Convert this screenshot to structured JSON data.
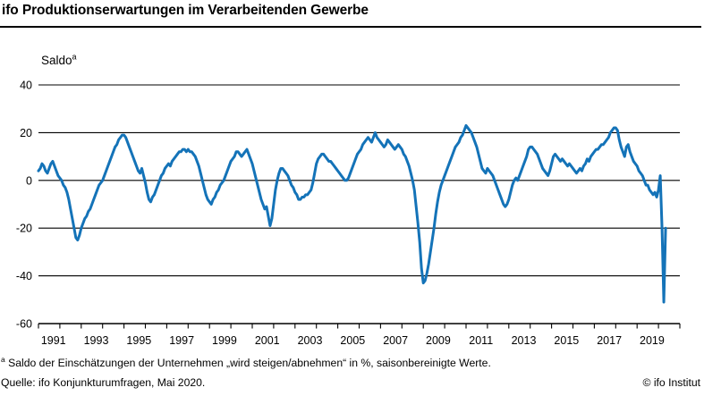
{
  "header": {
    "title": "ifo Produktionserwartungen im Verarbeitenden Gewerbe"
  },
  "chart_data": {
    "type": "line",
    "title": "ifo Produktionserwartungen im Verarbeitenden Gewerbe",
    "ylabel": "Saldo",
    "ylabel_sup": "a",
    "ylim": [
      -60,
      40
    ],
    "y_ticks": [
      40,
      20,
      0,
      -20,
      -40,
      -60
    ],
    "x_tick_labels": [
      "1991",
      "1993",
      "1995",
      "1997",
      "1999",
      "2001",
      "2003",
      "2005",
      "2007",
      "2009",
      "2011",
      "2013",
      "2015",
      "2017",
      "2019"
    ],
    "x_start": "1991-01",
    "x_end": "2020-05",
    "frequency": "monthly",
    "grid": true,
    "legend": "none",
    "line_color": "#1473b8",
    "axis_color": "#000000",
    "series": [
      {
        "name": "Produktionserwartungen Verarbeitendes Gewerbe (Saldo)",
        "values_by_year": {
          "1991": [
            4,
            5,
            7,
            6,
            4,
            3,
            5,
            7,
            8,
            6,
            4,
            2
          ],
          "1992": [
            1,
            0,
            -2,
            -3,
            -5,
            -8,
            -12,
            -16,
            -20,
            -24,
            -25,
            -23
          ],
          "1993": [
            -20,
            -18,
            -16,
            -15,
            -13,
            -12,
            -10,
            -8,
            -6,
            -4,
            -2,
            -1
          ],
          "1994": [
            0,
            2,
            4,
            6,
            8,
            10,
            12,
            14,
            15,
            17,
            18,
            19
          ],
          "1995": [
            19,
            18,
            16,
            14,
            12,
            10,
            8,
            6,
            4,
            3,
            5,
            2
          ],
          "1996": [
            -1,
            -5,
            -8,
            -9,
            -7,
            -6,
            -4,
            -2,
            0,
            2,
            3,
            5
          ],
          "1997": [
            6,
            7,
            6,
            8,
            9,
            10,
            11,
            12,
            12,
            13,
            13,
            12
          ],
          "1998": [
            13,
            12,
            12,
            11,
            10,
            8,
            6,
            3,
            0,
            -3,
            -6,
            -8
          ],
          "1999": [
            -9,
            -10,
            -8,
            -7,
            -5,
            -4,
            -2,
            -1,
            0,
            2,
            4,
            6
          ],
          "2000": [
            8,
            9,
            10,
            12,
            12,
            11,
            10,
            11,
            12,
            13,
            11,
            9
          ],
          "2001": [
            7,
            4,
            1,
            -2,
            -5,
            -8,
            -10,
            -12,
            -11,
            -15,
            -19,
            -16
          ],
          "2002": [
            -10,
            -4,
            0,
            3,
            5,
            5,
            4,
            3,
            2,
            0,
            -2,
            -3
          ],
          "2003": [
            -5,
            -6,
            -8,
            -8,
            -7,
            -7,
            -6,
            -6,
            -5,
            -4,
            -1,
            3
          ],
          "2004": [
            7,
            9,
            10,
            11,
            11,
            10,
            9,
            8,
            8,
            7,
            6,
            5
          ],
          "2005": [
            4,
            3,
            2,
            1,
            0,
            0,
            1,
            3,
            5,
            7,
            9,
            11
          ],
          "2006": [
            12,
            13,
            15,
            16,
            17,
            18,
            17,
            16,
            18,
            20,
            18,
            17
          ],
          "2007": [
            16,
            15,
            14,
            15,
            17,
            16,
            15,
            14,
            13,
            14,
            15,
            14
          ],
          "2008": [
            13,
            11,
            10,
            8,
            6,
            3,
            0,
            -4,
            -11,
            -18,
            -26,
            -37
          ],
          "2009": [
            -43,
            -42,
            -39,
            -35,
            -30,
            -25,
            -20,
            -14,
            -9,
            -5,
            -2,
            0
          ],
          "2010": [
            2,
            4,
            6,
            8,
            10,
            12,
            14,
            15,
            16,
            18,
            19,
            21
          ],
          "2011": [
            23,
            22,
            21,
            20,
            18,
            16,
            14,
            11,
            8,
            5,
            4,
            3
          ],
          "2012": [
            5,
            4,
            3,
            2,
            0,
            -2,
            -4,
            -6,
            -8,
            -10,
            -11,
            -10
          ],
          "2013": [
            -8,
            -5,
            -2,
            0,
            1,
            0,
            2,
            4,
            6,
            8,
            10,
            13
          ],
          "2014": [
            14,
            14,
            13,
            12,
            11,
            9,
            7,
            5,
            4,
            3,
            2,
            4
          ],
          "2015": [
            7,
            10,
            11,
            10,
            9,
            8,
            9,
            8,
            7,
            6,
            7,
            6
          ],
          "2016": [
            5,
            4,
            3,
            4,
            5,
            4,
            6,
            7,
            9,
            8,
            10,
            11
          ],
          "2017": [
            12,
            13,
            13,
            14,
            15,
            15,
            16,
            17,
            18,
            20,
            21,
            22
          ],
          "2018": [
            22,
            21,
            17,
            14,
            12,
            10,
            14,
            15,
            12,
            10,
            8,
            7
          ],
          "2019": [
            6,
            4,
            3,
            2,
            0,
            -2,
            -2,
            -4,
            -5,
            -6,
            -5,
            -7
          ],
          "2020": [
            -4,
            2,
            -20,
            -51,
            -20
          ]
        }
      }
    ]
  },
  "footnote": {
    "marker": "a",
    "text": "Saldo der Einschätzungen der Unternehmen „wird steigen/abnehmen“ in %, saisonbereinigte Werte."
  },
  "source": "Quelle: ifo Konjunkturumfragen, Mai 2020.",
  "copyright": "© ifo Institut"
}
